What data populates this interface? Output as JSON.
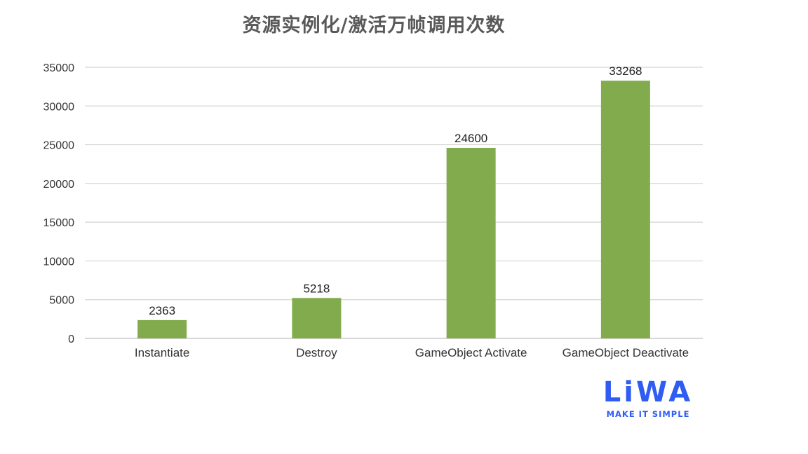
{
  "chart_data": {
    "type": "bar",
    "title": "资源实例化/激活万帧调用次数",
    "xlabel": "",
    "ylabel": "",
    "categories": [
      "Instantiate",
      "Destroy",
      "GameObject Activate",
      "GameObject Deactivate"
    ],
    "values": [
      2363,
      5218,
      24600,
      33268
    ],
    "data_labels": [
      "2363",
      "5218",
      "24600",
      "33268"
    ],
    "ylim": [
      0,
      35000
    ],
    "yticks": [
      0,
      5000,
      10000,
      15000,
      20000,
      25000,
      30000,
      35000
    ],
    "grid": true,
    "legend": "none",
    "bar_color": "#82ab4e",
    "grid_color": "#d4d4d4"
  },
  "logo": {
    "word": "LiWA",
    "tagline": "MAKE IT SIMPLE",
    "color": "#2f5cf2"
  }
}
